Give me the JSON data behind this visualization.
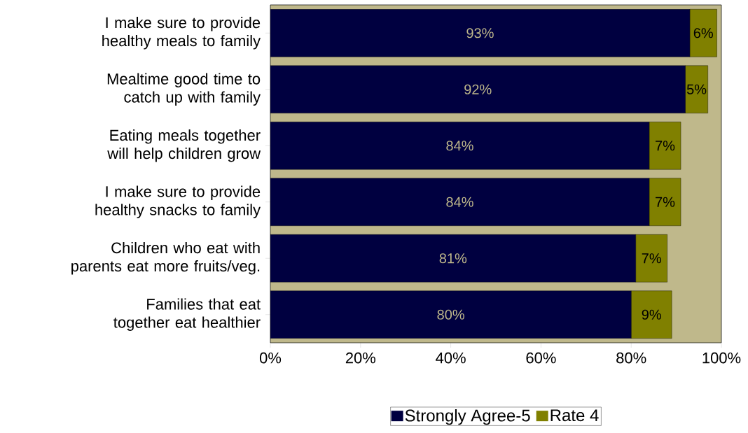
{
  "chart_data": {
    "type": "bar",
    "orientation": "horizontal",
    "stacked": true,
    "categories": [
      "I make sure to provide healthy meals to family",
      "Mealtime good time to catch up with family",
      "Eating meals together will help children grow",
      "I make sure to provide healthy snacks to family",
      "Children who eat with parents eat more fruits/veg.",
      "Families that eat together eat healthier"
    ],
    "series": [
      {
        "name": "Strongly Agree-5",
        "color": "#000040",
        "values": [
          93,
          92,
          84,
          84,
          81,
          80
        ],
        "value_labels": [
          "93%",
          "92%",
          "84%",
          "84%",
          "81%",
          "80%"
        ]
      },
      {
        "name": "Rate 4",
        "color": "#808000",
        "values": [
          6,
          5,
          7,
          7,
          7,
          9
        ],
        "value_labels": [
          "6%",
          "5%",
          "7%",
          "7%",
          "7%",
          "9%"
        ]
      }
    ],
    "xlim": [
      0,
      100
    ],
    "xticks": [
      {
        "value": 0,
        "label": "0%"
      },
      {
        "value": 20,
        "label": "20%"
      },
      {
        "value": 40,
        "label": "40%"
      },
      {
        "value": 60,
        "label": "60%"
      },
      {
        "value": 80,
        "label": "80%"
      },
      {
        "value": 100,
        "label": "100%"
      }
    ],
    "legend": "bottom"
  }
}
